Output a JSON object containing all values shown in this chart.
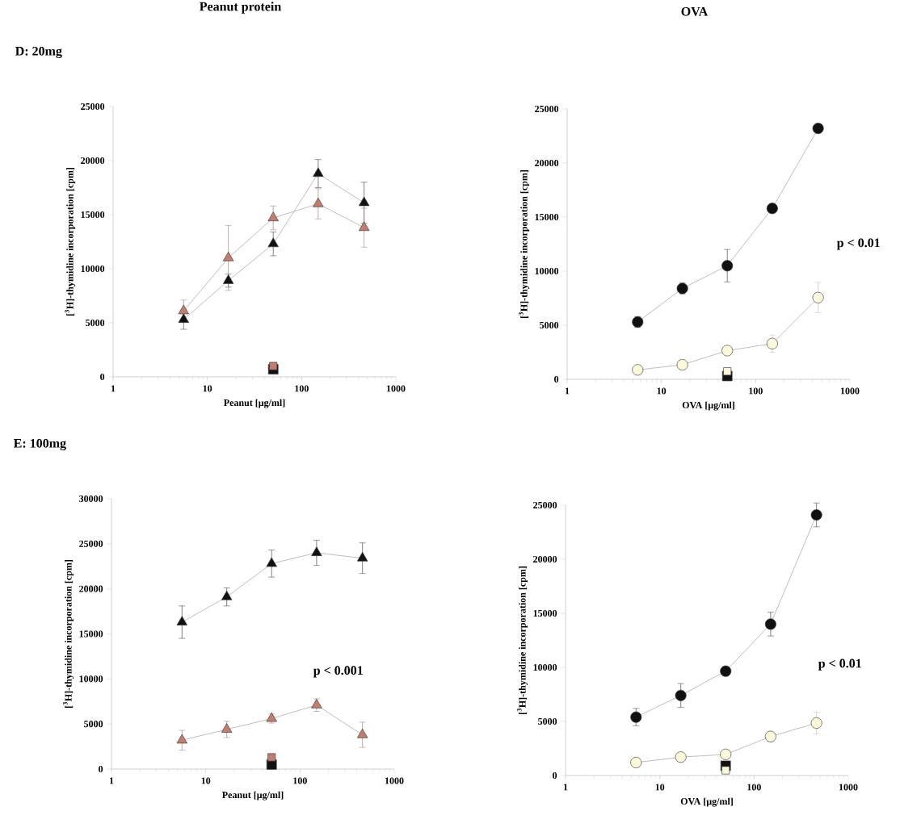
{
  "chart_data": [
    {
      "type": "line",
      "title": "Peanut protein",
      "subtitle": "D: 20mg",
      "xlabel": "Peanut [μg/ml]",
      "ylabel": "[$^{3}$H]-thymidine incorporation [cpm]",
      "log": "x",
      "xlim": [
        1,
        1000
      ],
      "xticks": [
        1,
        10,
        100,
        1000
      ],
      "ylim": [
        0,
        25000
      ],
      "yticks": [
        0,
        5000,
        10000,
        15000,
        20000,
        25000
      ],
      "series": [
        {
          "marker": "triangle",
          "color": "#111111",
          "x": [
            5.6,
            16.7,
            50,
            150,
            460
          ],
          "values": [
            5300,
            8900,
            12300,
            18800,
            16100
          ],
          "errors": [
            900,
            600,
            1100,
            1300,
            1900
          ]
        },
        {
          "marker": "triangle",
          "color": "#c27c70",
          "x": [
            5.6,
            16.7,
            50,
            150,
            460
          ],
          "values": [
            6100,
            11000,
            14700,
            16000,
            13800
          ],
          "errors": [
            1000,
            3000,
            1100,
            1400,
            1800
          ]
        },
        {
          "type": "scatter",
          "marker": "square",
          "color": "#111111",
          "x": [
            50
          ],
          "values": [
            700
          ]
        },
        {
          "type": "scatter",
          "marker": "square",
          "color": "#c27c70",
          "x": [
            50
          ],
          "values": [
            1000
          ]
        }
      ]
    },
    {
      "type": "line",
      "title": "OVA",
      "xlabel": "OVA [μg/ml]",
      "ylabel": "[$^{3}$H]-thymidine incorporation [cpm]",
      "annotations": [
        "p < 0.01"
      ],
      "log": "x",
      "xlim": [
        1,
        1000
      ],
      "xticks": [
        1,
        10,
        100,
        1000
      ],
      "ylim": [
        0,
        25000
      ],
      "yticks": [
        0,
        5000,
        10000,
        15000,
        20000,
        25000
      ],
      "series": [
        {
          "marker": "circle",
          "color": "#111111",
          "x": [
            5.6,
            16.7,
            50,
            150,
            460
          ],
          "values": [
            5300,
            8400,
            10500,
            15800,
            23200
          ],
          "errors": [
            500,
            500,
            1500,
            300,
            300
          ]
        },
        {
          "marker": "circle",
          "color": "#fbf8dc",
          "x": [
            5.6,
            16.7,
            50,
            150,
            460
          ],
          "values": [
            870,
            1340,
            2650,
            3300,
            7550
          ],
          "errors": [
            null,
            null,
            300,
            800,
            1400
          ]
        },
        {
          "type": "scatter",
          "marker": "square",
          "color": "#111111",
          "x": [
            50
          ],
          "values": [
            300
          ]
        },
        {
          "type": "scatter",
          "marker": "square",
          "color": "#fbf8dc",
          "x": [
            50
          ],
          "values": [
            730
          ]
        }
      ]
    },
    {
      "type": "line",
      "subtitle": "E: 100mg",
      "xlabel": "Peanut [μg/ml]",
      "ylabel": "[$^{3}$H]-thymidine incorporation [cpm]",
      "annotations": [
        "p < 0.001"
      ],
      "log": "x",
      "xlim": [
        1,
        1000
      ],
      "xticks": [
        1,
        10,
        100,
        1000
      ],
      "ylim": [
        0,
        30000
      ],
      "yticks": [
        0,
        5000,
        10000,
        15000,
        20000,
        25000,
        30000
      ],
      "series": [
        {
          "marker": "triangle",
          "color": "#111111",
          "x": [
            5.6,
            16.7,
            50,
            150,
            460
          ],
          "values": [
            16300,
            19100,
            22800,
            24000,
            23400
          ],
          "errors": [
            1800,
            1000,
            1500,
            1400,
            1700
          ]
        },
        {
          "marker": "triangle",
          "color": "#c27c70",
          "x": [
            5.6,
            16.7,
            50,
            150,
            460
          ],
          "values": [
            3200,
            4400,
            5600,
            7100,
            3800
          ],
          "errors": [
            1100,
            900,
            500,
            700,
            1400
          ]
        },
        {
          "type": "scatter",
          "marker": "square",
          "color": "#111111",
          "x": [
            50
          ],
          "values": [
            500
          ]
        },
        {
          "type": "scatter",
          "marker": "square",
          "color": "#c27c70",
          "x": [
            50
          ],
          "values": [
            1300
          ]
        }
      ]
    },
    {
      "type": "line",
      "xlabel": "OVA [μg/ml]",
      "ylabel": "[$^{3}$H]-thymidine incorporation [cpm]",
      "annotations": [
        "p < 0.01"
      ],
      "log": "x",
      "xlim": [
        1,
        1000
      ],
      "xticks": [
        1,
        10,
        100,
        1000
      ],
      "ylim": [
        0,
        25000
      ],
      "yticks": [
        0,
        5000,
        10000,
        15000,
        20000,
        25000
      ],
      "series": [
        {
          "marker": "circle",
          "color": "#111111",
          "x": [
            5.6,
            16.7,
            50,
            150,
            460
          ],
          "values": [
            5400,
            7400,
            9650,
            14000,
            24100
          ],
          "errors": [
            800,
            1100,
            400,
            1100,
            1100
          ]
        },
        {
          "marker": "circle",
          "color": "#fbf8dc",
          "x": [
            5.6,
            16.7,
            50,
            150,
            460
          ],
          "values": [
            1200,
            1700,
            1950,
            3600,
            4850
          ],
          "errors": [
            null,
            null,
            null,
            500,
            1000
          ]
        },
        {
          "type": "scatter",
          "marker": "square",
          "color": "#111111",
          "x": [
            50
          ],
          "values": [
            900
          ]
        },
        {
          "type": "scatter",
          "marker": "square",
          "color": "#fbf8dc",
          "x": [
            50
          ],
          "values": [
            480
          ]
        }
      ]
    }
  ]
}
